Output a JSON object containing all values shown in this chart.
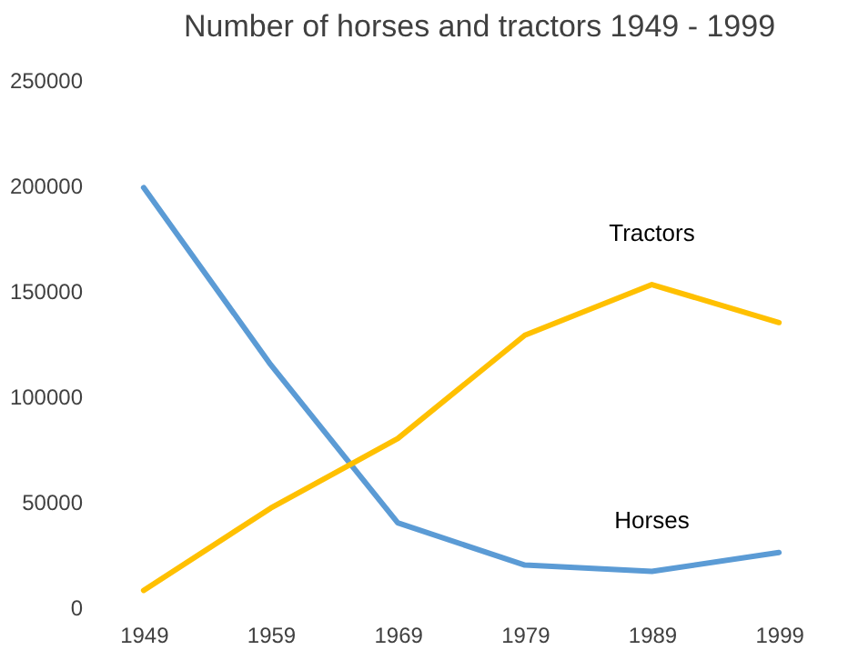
{
  "chart_data": {
    "type": "line",
    "title": "Number of horses and tractors 1949 - 1999",
    "categories": [
      "1949",
      "1959",
      "1969",
      "1979",
      "1989",
      "1999"
    ],
    "ylim": [
      0,
      250000
    ],
    "yticks": [
      0,
      50000,
      100000,
      150000,
      200000,
      250000
    ],
    "grid": false,
    "legend": false,
    "marker": "none",
    "line_style": "solid",
    "series": [
      {
        "name": "Horses",
        "color": "#5b9bd5",
        "values": [
          199000,
          115000,
          40000,
          20000,
          17000,
          26000
        ]
      },
      {
        "name": "Tractors",
        "color": "#ffc000",
        "values": [
          8000,
          47000,
          80000,
          129000,
          153000,
          135000
        ]
      }
    ]
  }
}
